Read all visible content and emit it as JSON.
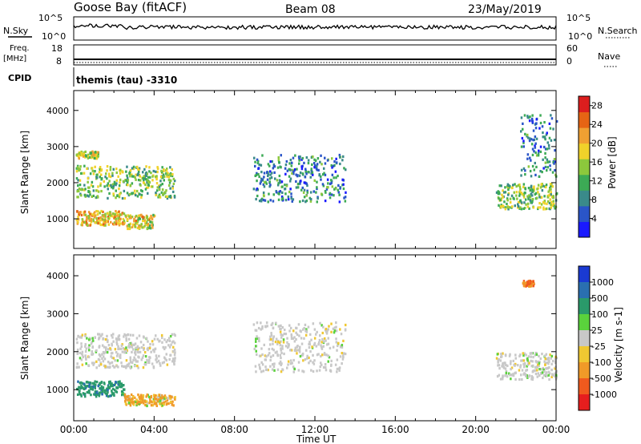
{
  "header": {
    "station": "Goose Bay (fitACF)",
    "beam": "Beam 08",
    "date": "23/May/2019"
  },
  "small_panels": {
    "nsky_label": "N.Sky",
    "nsky_ticks": [
      "10^5",
      "10^0"
    ],
    "nsearch_label": "N.Search",
    "freq_label_top": "Freq.",
    "freq_label_unit": "[MHz]",
    "freq_ticks": [
      "18",
      "8"
    ],
    "nave_label": "Nave",
    "nave_ticks": [
      "60",
      "0"
    ],
    "cpid_label": "CPID",
    "cpid_text": "themis (tau) -3310"
  },
  "chart_data": [
    {
      "type": "heatmap",
      "name": "power-panel",
      "xlabel": "",
      "ylabel": "Slant Range [km]",
      "x_ticks": [
        "00:00",
        "04:00",
        "08:00",
        "12:00",
        "16:00",
        "20:00",
        "00:00"
      ],
      "x_range_hours": [
        0,
        24
      ],
      "y_ticks": [
        1000,
        2000,
        3000,
        4000
      ],
      "ylim": [
        180,
        4550
      ],
      "colorbar": {
        "label": "Power [dB]",
        "ticks": [
          4,
          8,
          12,
          16,
          20,
          24,
          28
        ],
        "range": [
          0,
          30
        ],
        "colors": [
          "#1a1aff",
          "#2a55c8",
          "#3a8a8a",
          "#3caa55",
          "#8cc83c",
          "#f0d22a",
          "#f0a032",
          "#e66414",
          "#dc1e1e"
        ]
      },
      "echo_bands": [
        {
          "t_start": 0.1,
          "t_end": 5.0,
          "r_start": 1600,
          "r_end": 2500,
          "power": 14
        },
        {
          "t_start": 0.1,
          "t_end": 2.5,
          "r_start": 850,
          "r_end": 1250,
          "power": 20
        },
        {
          "t_start": 0.1,
          "t_end": 1.2,
          "r_start": 2700,
          "r_end": 2900,
          "power": 16
        },
        {
          "t_start": 2.5,
          "t_end": 4.0,
          "r_start": 750,
          "r_end": 1150,
          "power": 18
        },
        {
          "t_start": 8.9,
          "t_end": 13.5,
          "r_start": 1500,
          "r_end": 2800,
          "power": 8
        },
        {
          "t_start": 21.0,
          "t_end": 24.0,
          "r_start": 1300,
          "r_end": 2000,
          "power": 14
        },
        {
          "t_start": 22.2,
          "t_end": 24.0,
          "r_start": 2200,
          "r_end": 3900,
          "power": 8
        }
      ]
    },
    {
      "type": "heatmap",
      "name": "velocity-panel",
      "xlabel": "Time UT",
      "ylabel": "Slant Range [km]",
      "x_ticks": [
        "00:00",
        "04:00",
        "08:00",
        "12:00",
        "16:00",
        "20:00",
        "00:00"
      ],
      "x_range_hours": [
        0,
        24
      ],
      "y_ticks": [
        1000,
        2000,
        3000,
        4000
      ],
      "ylim": [
        180,
        4550
      ],
      "colorbar": {
        "label": "Velocity [m s-1]",
        "ticks": [
          "1000",
          "500",
          "100",
          "25",
          "-25",
          "-100",
          "-500",
          "-1000"
        ],
        "colors": [
          "#1a3ad2",
          "#2a6fb0",
          "#2a9a6a",
          "#5ad23c",
          "#c8c8c8",
          "#f0c832",
          "#f09a28",
          "#f05a1e",
          "#e61e1e"
        ]
      },
      "echo_bands": [
        {
          "t_start": 0.1,
          "t_end": 5.0,
          "r_start": 1600,
          "r_end": 2500,
          "velocity": 0
        },
        {
          "t_start": 0.1,
          "t_end": 2.5,
          "r_start": 850,
          "r_end": 1250,
          "velocity": 200
        },
        {
          "t_start": 2.5,
          "t_end": 5.0,
          "r_start": 600,
          "r_end": 900,
          "velocity": -100
        },
        {
          "t_start": 8.9,
          "t_end": 13.5,
          "r_start": 1500,
          "r_end": 2800,
          "velocity": 0
        },
        {
          "t_start": 21.0,
          "t_end": 24.0,
          "r_start": 1300,
          "r_end": 2000,
          "velocity": 0
        },
        {
          "t_start": 22.3,
          "t_end": 22.9,
          "r_start": 3750,
          "r_end": 3900,
          "velocity": -300
        }
      ]
    }
  ],
  "colors": {
    "axis": "#000000",
    "no_data": "#ffffff"
  }
}
